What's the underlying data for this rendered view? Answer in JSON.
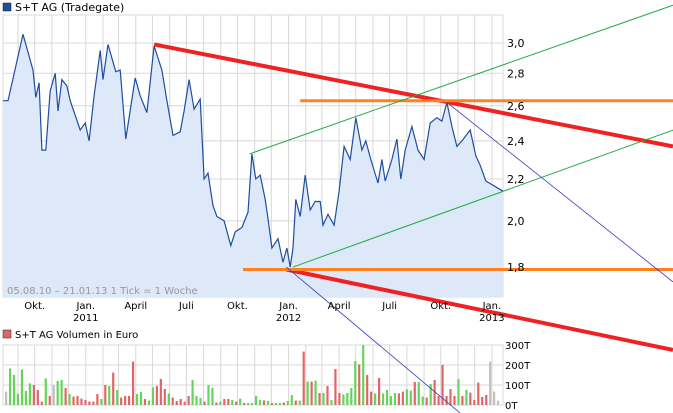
{
  "chart_data": [
    {
      "type": "area",
      "legend": "S+T AG (Tradegate)",
      "info": "05.08.10 – 21.01.13   1 Tick = 1 Woche",
      "scale": "log",
      "ylim": [
        1.7,
        3.1
      ],
      "xlim": [
        "2010-08-05",
        "2013-01-21"
      ],
      "grid": true,
      "y_ticks": [
        "1,8",
        "2,0",
        "2,2",
        "2,4",
        "2,6",
        "2,8",
        "3,0"
      ],
      "y_tick_values": [
        1.8,
        2.0,
        2.2,
        2.4,
        2.6,
        2.8,
        3.0
      ],
      "x_ticks": [
        {
          "date": "2010-10-01",
          "label": "Okt.",
          "year": ""
        },
        {
          "date": "2011-01-01",
          "label": "Jan.",
          "year": "2011"
        },
        {
          "date": "2011-04-01",
          "label": "April",
          "year": ""
        },
        {
          "date": "2011-07-01",
          "label": "Juli",
          "year": ""
        },
        {
          "date": "2011-10-01",
          "label": "Okt.",
          "year": ""
        },
        {
          "date": "2012-01-01",
          "label": "Jan.",
          "year": "2012"
        },
        {
          "date": "2012-04-01",
          "label": "April",
          "year": ""
        },
        {
          "date": "2012-07-01",
          "label": "Juli",
          "year": ""
        },
        {
          "date": "2012-10-01",
          "label": "Okt.",
          "year": ""
        },
        {
          "date": "2013-01-01",
          "label": "Jan.",
          "year": "2013"
        }
      ],
      "colors": {
        "line": "#1f4e9c",
        "fill": "#dde8f8",
        "legend_box": "#1f4e9c"
      },
      "series": [
        {
          "x": [
            "2010-08-05",
            "2010-08-14",
            "2010-09-10",
            "2010-09-28",
            "2010-10-03",
            "2010-10-09",
            "2010-10-14",
            "2010-10-21",
            "2010-10-29",
            "2010-11-07",
            "2010-11-12",
            "2010-11-19",
            "2010-11-28",
            "2010-12-04",
            "2010-12-22",
            "2010-12-31",
            "2011-01-07",
            "2011-01-16",
            "2011-01-27",
            "2011-02-01",
            "2011-02-10",
            "2011-02-24",
            "2011-03-04",
            "2011-03-14",
            "2011-03-31",
            "2011-04-09",
            "2011-04-21",
            "2011-05-04",
            "2011-05-18",
            "2011-05-27",
            "2011-06-07",
            "2011-06-20",
            "2011-06-27",
            "2011-07-06",
            "2011-07-15",
            "2011-07-26",
            "2011-08-02",
            "2011-08-09",
            "2011-08-18",
            "2011-08-25",
            "2011-09-07",
            "2011-09-19",
            "2011-09-27",
            "2011-10-09",
            "2011-10-20",
            "2011-10-27",
            "2011-11-03",
            "2011-11-11",
            "2011-11-20",
            "2011-11-25",
            "2011-12-02",
            "2011-12-13",
            "2011-12-22",
            "2011-12-29",
            "2012-01-04",
            "2012-01-09",
            "2012-01-14",
            "2012-01-22",
            "2012-01-31",
            "2012-02-09",
            "2012-02-18",
            "2012-02-27",
            "2012-03-03",
            "2012-03-12",
            "2012-03-23",
            "2012-04-01",
            "2012-04-10",
            "2012-04-21",
            "2012-05-01",
            "2012-05-12",
            "2012-05-19",
            "2012-05-28",
            "2012-06-10",
            "2012-06-17",
            "2012-06-23",
            "2012-07-05",
            "2012-07-14",
            "2012-07-21",
            "2012-07-29",
            "2012-08-10",
            "2012-08-21",
            "2012-09-01",
            "2012-09-12",
            "2012-09-24",
            "2012-10-03",
            "2012-10-12",
            "2012-10-21",
            "2012-10-30",
            "2012-11-08",
            "2012-11-23",
            "2012-12-03",
            "2012-12-11",
            "2012-12-21",
            "2013-01-21"
          ],
          "y": [
            2.63,
            2.63,
            3.06,
            2.82,
            2.65,
            2.74,
            2.35,
            2.35,
            2.69,
            2.8,
            2.57,
            2.76,
            2.72,
            2.63,
            2.46,
            2.5,
            2.4,
            2.66,
            2.95,
            2.76,
            2.99,
            2.81,
            2.82,
            2.41,
            2.77,
            2.66,
            2.56,
            2.98,
            2.82,
            2.63,
            2.43,
            2.45,
            2.57,
            2.76,
            2.58,
            2.64,
            2.2,
            2.23,
            2.07,
            2.02,
            2.0,
            1.89,
            1.95,
            1.97,
            2.04,
            2.33,
            2.2,
            2.22,
            2.1,
            2.01,
            1.88,
            1.92,
            1.82,
            1.88,
            1.8,
            1.88,
            2.1,
            2.02,
            2.22,
            2.05,
            2.09,
            2.09,
            1.98,
            2.03,
            1.98,
            2.14,
            2.37,
            2.3,
            2.53,
            2.35,
            2.4,
            2.3,
            2.18,
            2.3,
            2.19,
            2.3,
            2.41,
            2.2,
            2.35,
            2.48,
            2.35,
            2.3,
            2.5,
            2.53,
            2.51,
            2.62,
            2.48,
            2.37,
            2.4,
            2.46,
            2.32,
            2.27,
            2.19,
            2.14
          ]
        }
      ]
    },
    {
      "type": "bar",
      "legend": "S+T AG Volumen in Euro",
      "ylim": [
        0,
        300
      ],
      "y_ticks": [
        "0T",
        "100T",
        "200T",
        "300T"
      ],
      "y_tick_values": [
        0,
        100,
        200,
        300
      ],
      "colors": {
        "up": "#66d45a",
        "down": "#e06666",
        "neutral": "#c0c0c0",
        "legend_box": "#e06666"
      },
      "values": [
        67,
        183,
        150,
        55,
        178,
        70,
        108,
        100,
        75,
        17,
        133,
        45,
        100,
        120,
        125,
        85,
        55,
        42,
        45,
        32,
        25,
        17,
        17,
        55,
        30,
        100,
        95,
        162,
        75,
        37,
        45,
        45,
        217,
        55,
        65,
        30,
        22,
        88,
        95,
        130,
        80,
        58,
        37,
        20,
        30,
        17,
        45,
        125,
        45,
        35,
        17,
        100,
        85,
        12,
        17,
        30,
        30,
        25,
        17,
        32,
        10,
        10,
        10,
        45,
        25,
        23,
        20,
        10,
        10,
        10,
        12,
        20,
        50,
        22,
        22,
        267,
        117,
        117,
        122,
        60,
        60,
        95,
        25,
        180,
        60,
        53,
        60,
        85,
        220,
        203,
        300,
        150,
        67,
        58,
        135,
        58,
        75,
        45,
        60,
        58,
        67,
        78,
        72,
        115,
        115,
        42,
        37,
        105,
        125,
        45,
        200,
        45,
        80,
        45,
        130,
        45,
        75,
        62,
        25,
        112,
        40,
        50,
        217,
        67,
        22
      ],
      "direction": "nggggggrrrgrnggrgrrrrrrrgrgrgrrrrggrggrrrgrrrrrgggrggrgrrgrgrggggrgrggrggrgrgrgrgrgrrggggrgrrgrggggrrggrggrgrrrrrrgrgrrrrr"
    }
  ],
  "trend_lines": [
    {
      "kind": "resistance",
      "color": "#ee2222",
      "width": 4,
      "from": [
        "2011-05-04",
        2.99
      ],
      "to": [
        "2013-11-23",
        2.37
      ]
    },
    {
      "kind": "resistance",
      "color": "#ee2222",
      "width": 4,
      "from": [
        "2011-12-28",
        1.79
      ],
      "to": [
        "2013-11-23",
        1.49
      ]
    },
    {
      "kind": "horizontal",
      "color": "#ff8020",
      "width": 3,
      "from": [
        "2012-01-22",
        2.63
      ],
      "to": [
        "2013-11-23",
        2.63
      ]
    },
    {
      "kind": "horizontal",
      "color": "#ff8020",
      "width": 3,
      "from": [
        "2011-10-11",
        1.79
      ],
      "to": [
        "2013-11-23",
        1.79
      ]
    },
    {
      "kind": "channel",
      "color": "#22aa44",
      "width": 1,
      "from": [
        "2011-10-23",
        2.33
      ],
      "to": [
        "2013-11-23",
        3.27
      ]
    },
    {
      "kind": "channel",
      "color": "#22aa44",
      "width": 1,
      "from": [
        "2012-01-09",
        1.8
      ],
      "to": [
        "2013-11-23",
        2.46
      ]
    },
    {
      "kind": "trend",
      "color": "#3a3ac0",
      "width": 0.8,
      "from": [
        "2012-10-12",
        2.62
      ],
      "to": [
        "2013-11-23",
        1.74
      ]
    },
    {
      "kind": "trend",
      "color": "#3a3ac0",
      "width": 0.8,
      "from": [
        "2011-12-28",
        1.8
      ],
      "to": [
        "2012-11-05",
        1.29
      ]
    }
  ]
}
